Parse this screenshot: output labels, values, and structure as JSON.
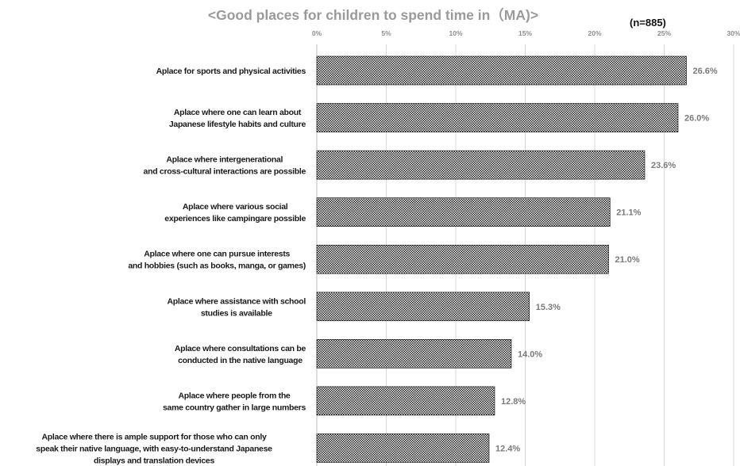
{
  "chart_data": {
    "type": "bar",
    "orientation": "horizontal",
    "title": "<Good places for children to spend time in（MA)>",
    "sample_note": "(n=885)",
    "xlim": [
      0,
      30
    ],
    "ticks": [
      "0%",
      "5%",
      "10%",
      "15%",
      "20%",
      "25%",
      "30%"
    ],
    "grid": true,
    "bar_pattern": "checkered",
    "bar_colors": {
      "dark": "#1a1a1a",
      "light": "#ffffff",
      "outline": "#000000"
    },
    "categories": [
      [
        "Aplace for sports and physical activities"
      ],
      [
        "Aplace where one can learn about",
        "Japanese lifestyle habits and culture"
      ],
      [
        "Aplace where intergenerational",
        "and cross-cultural interactions are possible"
      ],
      [
        "Aplace where various social",
        "experiences like campingare possible"
      ],
      [
        "Aplace where one can pursue interests",
        "and hobbies (such as books, manga, or games)"
      ],
      [
        "Aplace where assistance with school",
        "studies is available"
      ],
      [
        "Aplace where consultations can be",
        "conducted in the native language"
      ],
      [
        "Aplace where people from the",
        "same country gather in large numbers"
      ],
      [
        "Aplace where there is ample support for those who can only",
        "speak their native language, with easy-to-understand Japanese",
        "displays and translation devices"
      ]
    ],
    "values": [
      26.6,
      26.0,
      23.6,
      21.1,
      21.0,
      15.3,
      14.0,
      12.8,
      12.4
    ],
    "value_labels": [
      "26.6%",
      "26.0%",
      "23.6%",
      "21.1%",
      "21.0%",
      "15.3%",
      "14.0%",
      "12.8%",
      "12.4%"
    ]
  }
}
